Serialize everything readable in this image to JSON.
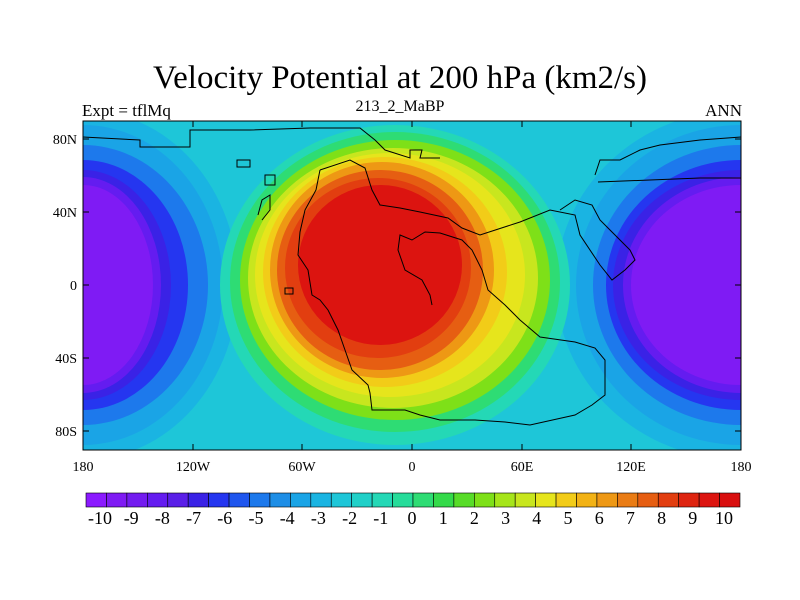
{
  "title": "Velocity Potential at 200 hPa (km2/s)",
  "left_string": "Expt = tflMq",
  "center_string": "213_2_MaBP",
  "right_string": "ANN",
  "x_ticks": [
    "180",
    "120W",
    "60W",
    "0",
    "60E",
    "120E",
    "180"
  ],
  "y_ticks": [
    "80N",
    "40N",
    "0",
    "40S",
    "80S"
  ],
  "colorbar": {
    "labels": [
      "-10",
      "-9",
      "-8",
      "-7",
      "-6",
      "-5",
      "-4",
      "-3",
      "-2",
      "-1",
      "0",
      "1",
      "2",
      "3",
      "4",
      "5",
      "6",
      "7",
      "8",
      "9",
      "10"
    ],
    "colors": [
      "#8b1aff",
      "#7f1bf4",
      "#731cf0",
      "#641cf0",
      "#5a1fe8",
      "#3a22e6",
      "#2536f0",
      "#1f56ee",
      "#1d79ec",
      "#1e8ee6",
      "#1aa4e6",
      "#1ab4e2",
      "#1ec6d8",
      "#20d0c8",
      "#24d8b6",
      "#26dc9a",
      "#2edc74",
      "#34da4a",
      "#58dc28",
      "#7ee018",
      "#a6e51a",
      "#c8e61e",
      "#e6e51c",
      "#f2cc18",
      "#f2b214",
      "#ee9814",
      "#ea7c14",
      "#e65e12",
      "#e23e10",
      "#de2410",
      "#dc1410",
      "#d90e0e"
    ]
  },
  "chart_data": {
    "type": "heatmap",
    "title": "Velocity Potential at 200 hPa (km2/s)",
    "projection": "cylindrical equidistant",
    "lon_range": [
      -180,
      180
    ],
    "lat_range": [
      -90,
      90
    ],
    "lon_ticks": [
      -180,
      -120,
      -60,
      0,
      60,
      120,
      180
    ],
    "lat_ticks": [
      80,
      40,
      0,
      -40,
      -80
    ],
    "levels": [
      -10,
      -9,
      -8,
      -7,
      -6,
      -5,
      -4,
      -3,
      -2,
      -1,
      0,
      1,
      2,
      3,
      4,
      5,
      6,
      7,
      8,
      9,
      10
    ],
    "field_max": {
      "lon": -10,
      "lat": 5,
      "value": 10
    },
    "field_min_west": {
      "lon": -180,
      "lat": 0,
      "value": -10
    },
    "field_min_east": {
      "lon": 180,
      "lat": 0,
      "value": -10
    },
    "units": "km2/s"
  }
}
